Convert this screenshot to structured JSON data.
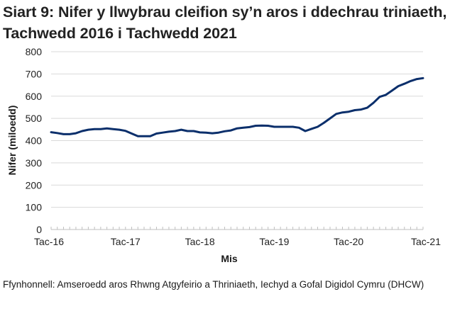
{
  "title": "Siart 9: Nifer y llwybrau cleifion sy’n aros i ddechrau triniaeth, Tachwedd 2016 i Tachwedd 2021",
  "source": "Ffynhonnell: Amseroedd aros Rhwng Atgyfeirio a Thriniaeth, Iechyd a Gofal Digidol Cymru (DHCW)",
  "colors": {
    "line": "#0b2f6b",
    "grid": "#d9d9d9",
    "axis": "#bfbfbf"
  },
  "chart_data": {
    "type": "line",
    "title": "Siart 9: Nifer y llwybrau cleifion sy’n aros i ddechrau triniaeth, Tachwedd 2016 i Tachwedd 2021",
    "xlabel": "Mis",
    "ylabel": "Nifer (miloedd)",
    "ylim": [
      0,
      800
    ],
    "yticks": [
      0,
      100,
      200,
      300,
      400,
      500,
      600,
      700,
      800
    ],
    "xtick_labels": [
      "Tac-16",
      "Tac-17",
      "Tac-18",
      "Tac-19",
      "Tac-20",
      "Tac-21"
    ],
    "grid": true,
    "legend": null,
    "x": [
      "Nov-16",
      "Dec-16",
      "Jan-17",
      "Feb-17",
      "Mar-17",
      "Apr-17",
      "May-17",
      "Jun-17",
      "Jul-17",
      "Aug-17",
      "Sep-17",
      "Oct-17",
      "Nov-17",
      "Dec-17",
      "Jan-18",
      "Feb-18",
      "Mar-18",
      "Apr-18",
      "May-18",
      "Jun-18",
      "Jul-18",
      "Aug-18",
      "Sep-18",
      "Oct-18",
      "Nov-18",
      "Dec-18",
      "Jan-19",
      "Feb-19",
      "Mar-19",
      "Apr-19",
      "May-19",
      "Jun-19",
      "Jul-19",
      "Aug-19",
      "Sep-19",
      "Oct-19",
      "Nov-19",
      "Dec-19",
      "Jan-20",
      "Feb-20",
      "Mar-20",
      "Apr-20",
      "May-20",
      "Jun-20",
      "Jul-20",
      "Aug-20",
      "Sep-20",
      "Oct-20",
      "Nov-20",
      "Dec-20",
      "Jan-21",
      "Feb-21",
      "Mar-21",
      "Apr-21",
      "May-21",
      "Jun-21",
      "Jul-21",
      "Aug-21",
      "Sep-21",
      "Oct-21",
      "Nov-21"
    ],
    "series": [
      {
        "name": "Nifer (miloedd)",
        "values": [
          438,
          434,
          429,
          429,
          433,
          443,
          449,
          452,
          452,
          455,
          452,
          449,
          444,
          432,
          420,
          420,
          420,
          432,
          436,
          440,
          443,
          449,
          443,
          443,
          437,
          436,
          433,
          436,
          442,
          446,
          455,
          458,
          461,
          467,
          468,
          467,
          462,
          462,
          462,
          462,
          458,
          443,
          453,
          462,
          480,
          500,
          520,
          527,
          530,
          537,
          540,
          548,
          570,
          597,
          606,
          625,
          645,
          656,
          668,
          677,
          681
        ]
      }
    ]
  },
  "axes": {
    "y_ticks": [
      "0",
      "100",
      "200",
      "300",
      "400",
      "500",
      "600",
      "700",
      "800"
    ],
    "x_ticks": [
      "Tac-16",
      "Tac-17",
      "Tac-18",
      "Tac-19",
      "Tac-20",
      "Tac-21"
    ],
    "x_title": "Mis",
    "y_title": "Nifer (miloedd)"
  }
}
